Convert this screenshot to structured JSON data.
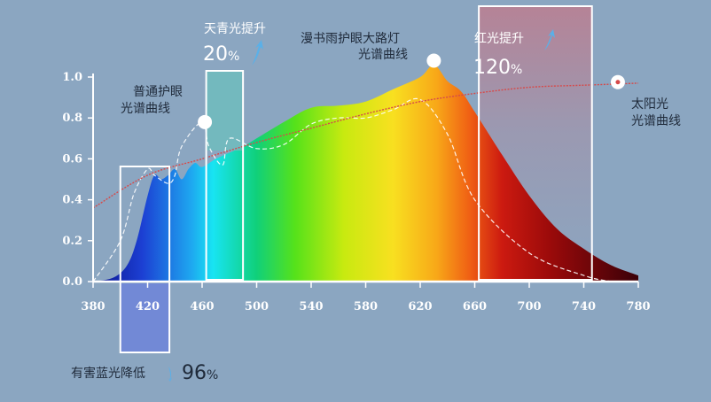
{
  "chart_data": {
    "type": "area",
    "xlim": [
      380,
      780
    ],
    "ylim": [
      0,
      1.0
    ],
    "x_ticks": [
      "380",
      "420",
      "460",
      "500",
      "540",
      "580",
      "620",
      "660",
      "700",
      "740",
      "780"
    ],
    "y_ticks": [
      "0.0",
      "0.2",
      "0.4",
      "0.6",
      "0.8",
      "1.0"
    ],
    "series": [
      {
        "name": "漫书雨护眼大路灯光谱曲线",
        "style": "filled-rainbow",
        "x": [
          380,
          395,
          405,
          412,
          420,
          425,
          430,
          435,
          440,
          445,
          450,
          455,
          460,
          470,
          480,
          490,
          500,
          520,
          540,
          560,
          580,
          600,
          620,
          630,
          640,
          650,
          660,
          680,
          700,
          720,
          740,
          760,
          780
        ],
        "y": [
          0.0,
          0.02,
          0.08,
          0.2,
          0.42,
          0.52,
          0.5,
          0.52,
          0.55,
          0.5,
          0.55,
          0.58,
          0.56,
          0.6,
          0.63,
          0.66,
          0.7,
          0.78,
          0.85,
          0.86,
          0.88,
          0.94,
          1.0,
          1.06,
          0.98,
          0.93,
          0.83,
          0.62,
          0.42,
          0.26,
          0.16,
          0.08,
          0.03
        ]
      },
      {
        "name": "普通护眼光谱曲线",
        "style": "dashed-white",
        "x": [
          380,
          400,
          410,
          420,
          425,
          435,
          440,
          445,
          460,
          465,
          475,
          480,
          500,
          520,
          540,
          560,
          580,
          600,
          620,
          640,
          660,
          700,
          740,
          760
        ],
        "y": [
          0.0,
          0.2,
          0.43,
          0.55,
          0.52,
          0.48,
          0.52,
          0.66,
          0.78,
          0.66,
          0.57,
          0.7,
          0.65,
          0.67,
          0.77,
          0.8,
          0.8,
          0.84,
          0.89,
          0.72,
          0.4,
          0.14,
          0.03,
          0.0
        ]
      },
      {
        "name": "太阳光光谱曲线",
        "style": "red-line",
        "x": [
          380,
          420,
          460,
          500,
          540,
          580,
          620,
          660,
          700,
          740,
          780
        ],
        "y": [
          0.36,
          0.52,
          0.6,
          0.68,
          0.75,
          0.82,
          0.88,
          0.92,
          0.95,
          0.96,
          0.97
        ]
      }
    ],
    "annotations": {
      "blue_reduce": {
        "label": "有害蓝光降低",
        "value": "96",
        "unit": "%",
        "band": [
          400,
          436
        ]
      },
      "cyan_boost": {
        "label": "天青光提升",
        "value": "20",
        "unit": "%",
        "band": [
          463,
          490
        ]
      },
      "red_boost": {
        "label": "红光提升",
        "value": "120",
        "unit": "%",
        "band": [
          663,
          746
        ]
      },
      "normal_curve_label": [
        "普通护眼",
        "光谱曲线"
      ],
      "lamp_curve_label": [
        "漫书雨护眼大路灯",
        "光谱曲线"
      ],
      "sun_curve_label": [
        "太阳光",
        "光谱曲线"
      ]
    },
    "colors": {
      "background": "#8ba6c1",
      "sun_line": "#d64a4a",
      "blue_box_fill": "#6f86d8",
      "cyan_box_fill": "#6fbcbd",
      "red_box_fill": "#b88194",
      "arrow": "#5ab0e8"
    }
  }
}
